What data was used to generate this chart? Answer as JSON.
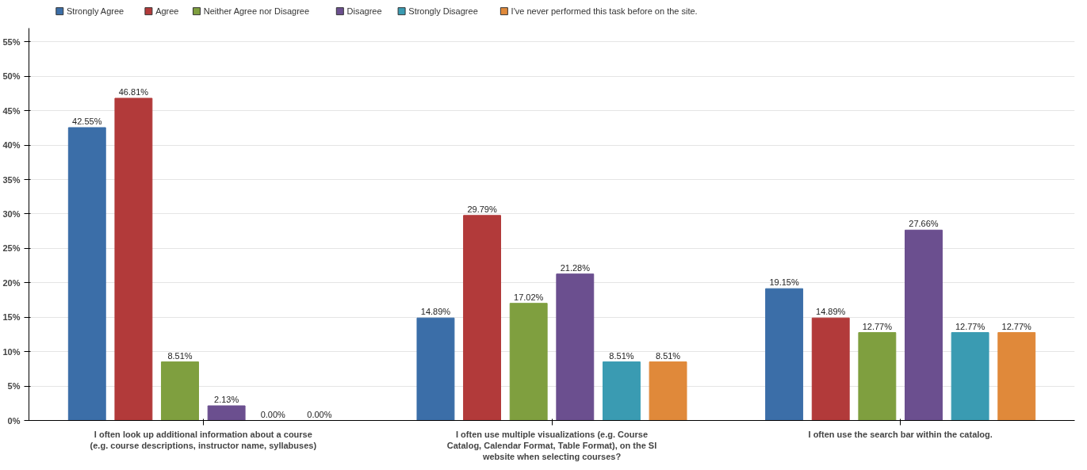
{
  "chart_data": {
    "type": "bar",
    "categories": [
      "I often look up additional information about a course (e.g. course descriptions, instructor name, syllabuses)",
      "I often use multiple visualizations (e.g. Course Catalog, Calendar Format, Table Format), on the SI website when selecting courses?",
      "I often use the search bar within the catalog."
    ],
    "series": [
      {
        "name": "Strongly Agree",
        "color": "#3b6ea8",
        "values": [
          42.55,
          14.89,
          19.15
        ],
        "value_labels": [
          "42.55%",
          "14.89%",
          "19.15%"
        ]
      },
      {
        "name": "Agree",
        "color": "#b23a3a",
        "values": [
          46.81,
          29.79,
          14.89
        ],
        "value_labels": [
          "46.81%",
          "29.79%",
          "14.89%"
        ]
      },
      {
        "name": "Neither Agree nor Disagree",
        "color": "#7f9f3f",
        "values": [
          8.51,
          17.02,
          12.77
        ],
        "value_labels": [
          "8.51%",
          "17.02%",
          "12.77%"
        ]
      },
      {
        "name": "Disagree",
        "color": "#6b4f8f",
        "values": [
          2.13,
          21.28,
          27.66
        ],
        "value_labels": [
          "2.13%",
          "21.28%",
          "27.66%"
        ]
      },
      {
        "name": "Strongly Disagree",
        "color": "#3a9bb2",
        "values": [
          0.0,
          8.51,
          12.77
        ],
        "value_labels": [
          "0.00%",
          "8.51%",
          "12.77%"
        ]
      },
      {
        "name": "I've never performed this task before on the site.",
        "color": "#e0893a",
        "values": [
          0.0,
          8.51,
          12.77
        ],
        "value_labels": [
          "0.00%",
          "8.51%",
          "12.77%"
        ]
      }
    ],
    "ylim": [
      0,
      57
    ],
    "yticks": [
      {
        "value": 0,
        "label": "0%"
      },
      {
        "value": 5,
        "label": "5%"
      },
      {
        "value": 10,
        "label": "10%"
      },
      {
        "value": 15,
        "label": "15%"
      },
      {
        "value": 20,
        "label": "20%"
      },
      {
        "value": 25,
        "label": "25%"
      },
      {
        "value": 30,
        "label": "30%"
      },
      {
        "value": 35,
        "label": "35%"
      },
      {
        "value": 40,
        "label": "40%"
      },
      {
        "value": 45,
        "label": "45%"
      },
      {
        "value": 50,
        "label": "50%"
      },
      {
        "value": 55,
        "label": "55%"
      }
    ],
    "grid": "y",
    "legend": "top left"
  }
}
